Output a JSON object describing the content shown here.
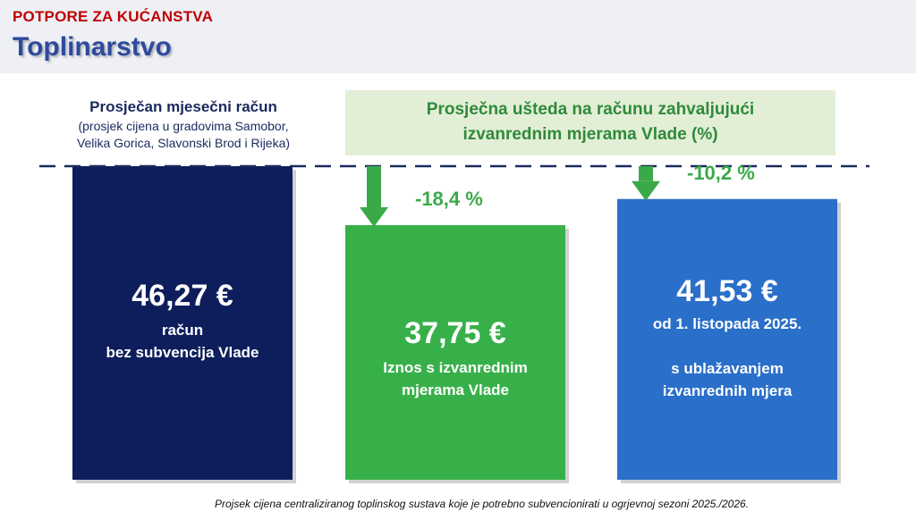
{
  "header": {
    "category": "POTPORE ZA KUĆANSTVA",
    "title": "Toplinarstvo"
  },
  "left_caption": {
    "title": "Prosječan mjesečni račun",
    "subtitle": "(prosjek cijena u gradovima Samobor,\nVelika Gorica, Slavonski Brod i Rijeka)"
  },
  "savings_box": {
    "text": "Prosječna ušteda na računu zahvaljujući\nizvanrednim mjerama Vlade (%)"
  },
  "footnote": "Projsek cijena centraliziranog toplinskog sustava koje je potrebno subvencionirati u ogrjevnoj sezoni 2025./2026.",
  "colors": {
    "bar_1": "#0e1e5c",
    "bar_2": "#38b04a",
    "bar_3": "#2a6fc9",
    "accent_green": "#3aaa49",
    "title_blue": "#2e4a9e",
    "category_red": "#c00000"
  },
  "icons": [
    "down-arrow-icon"
  ],
  "chart_data": {
    "type": "bar",
    "unit": "€",
    "baseline_value": 46.27,
    "categories": [
      "račun bez subvencija Vlade",
      "Iznos s izvanrednim mjerama Vlade",
      "od 1. listopada 2025. s ublažavanjem izvanrednih mjera"
    ],
    "values": [
      46.27,
      37.75,
      41.53
    ],
    "bars": [
      {
        "amount_label": "46,27 €",
        "description": "račun\nbez subvencija Vlade",
        "change_label": ""
      },
      {
        "amount_label": "37,75 €",
        "description": "Iznos s izvanrednim\nmjerama Vlade",
        "change_label": "-18,4 %"
      },
      {
        "amount_label": "41,53 €",
        "description": "od 1. listopada 2025.\n\ns ublažavanjem\nizvanrednih mjera",
        "change_label": "-10,2 %"
      }
    ]
  }
}
